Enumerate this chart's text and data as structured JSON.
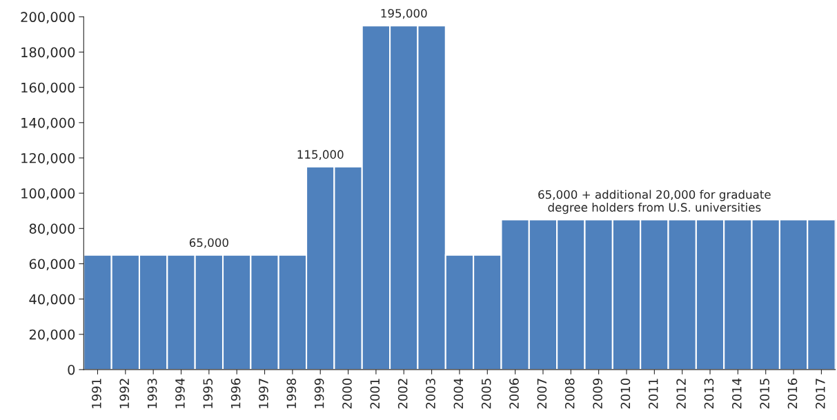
{
  "chart_data": {
    "type": "bar",
    "categories": [
      "1991",
      "1992",
      "1993",
      "1994",
      "1995",
      "1996",
      "1997",
      "1998",
      "1999",
      "2000",
      "2001",
      "2002",
      "2003",
      "2004",
      "2005",
      "2006",
      "2007",
      "2008",
      "2009",
      "2010",
      "2011",
      "2012",
      "2013",
      "2014",
      "2015",
      "2016",
      "2017"
    ],
    "values": [
      65000,
      65000,
      65000,
      65000,
      65000,
      65000,
      65000,
      65000,
      115000,
      115000,
      195000,
      195000,
      195000,
      65000,
      65000,
      85000,
      85000,
      85000,
      85000,
      85000,
      85000,
      85000,
      85000,
      85000,
      85000,
      85000,
      85000
    ],
    "color": "#4f81bd",
    "ylim": [
      0,
      200000
    ],
    "yticks": [
      0,
      {
        "value": 20000,
        "label": "20,000"
      },
      {
        "value": 40000,
        "label": "40,000"
      },
      {
        "value": 60000,
        "label": "60,000"
      },
      {
        "value": 80000,
        "label": "80,000"
      },
      {
        "value": 100000,
        "label": "100,000"
      },
      {
        "value": 120000,
        "label": "120,000"
      },
      {
        "value": 140000,
        "label": "140,000"
      },
      {
        "value": 160000,
        "label": "160,000"
      },
      {
        "value": 180000,
        "label": "180,000"
      },
      {
        "value": 200000,
        "label": "200,000"
      }
    ],
    "grid": false,
    "legend": false,
    "annotations": [
      {
        "text": "65,000",
        "x": "1995",
        "y": 65000
      },
      {
        "text": "115,000",
        "x": "1999",
        "y": 115000
      },
      {
        "text": "195,000",
        "x": "2002",
        "y": 195000
      },
      {
        "text": "65,000 + additional 20,000 for graduate\ndegree holders from U.S. universities",
        "x": "2011",
        "y": 85000
      }
    ]
  }
}
